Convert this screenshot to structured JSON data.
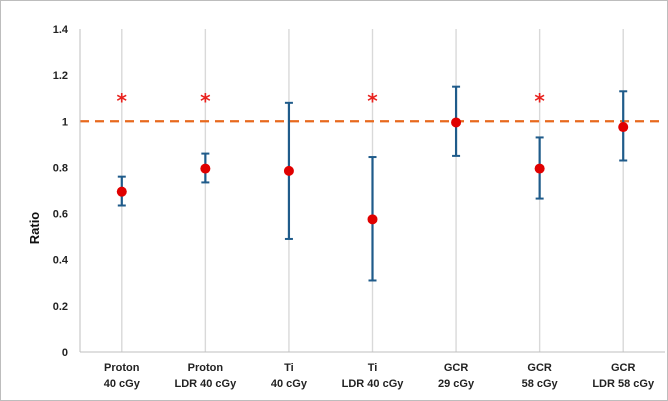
{
  "chart_data": {
    "type": "scatter",
    "title": "",
    "xlabel": "",
    "ylabel": "Ratio",
    "ylim": [
      0,
      1.4
    ],
    "yticks": [
      "0",
      "0.2",
      "0.4",
      "0.6",
      "0.8",
      "1",
      "1.2",
      "1.4"
    ],
    "grid": "vertical",
    "categories": [
      [
        "Proton",
        "40 cGy"
      ],
      [
        "Proton",
        "LDR 40 cGy"
      ],
      [
        "Ti",
        "40 cGy"
      ],
      [
        "Ti",
        "LDR 40 cGy"
      ],
      [
        "GCR",
        "29 cGy"
      ],
      [
        "GCR",
        "58 cGy"
      ],
      [
        "GCR",
        "LDR 58 cGy"
      ]
    ],
    "values": [
      0.695,
      0.795,
      0.785,
      0.575,
      0.995,
      0.795,
      0.975
    ],
    "error_low": [
      0.635,
      0.735,
      0.49,
      0.31,
      0.85,
      0.665,
      0.83
    ],
    "error_high": [
      0.76,
      0.86,
      1.08,
      0.845,
      1.15,
      0.93,
      1.13
    ],
    "significant": [
      true,
      true,
      false,
      true,
      false,
      true,
      false
    ],
    "significance_marker": "*",
    "reference_line": {
      "y": 1,
      "style": "dashed"
    },
    "colors": {
      "point": "#e00000",
      "error_bar": "#1f5b8a",
      "reference_line": "#e8691e",
      "star": "#e8221e",
      "grid": "#d9d9d9",
      "axis": "#bfbfbf"
    }
  }
}
